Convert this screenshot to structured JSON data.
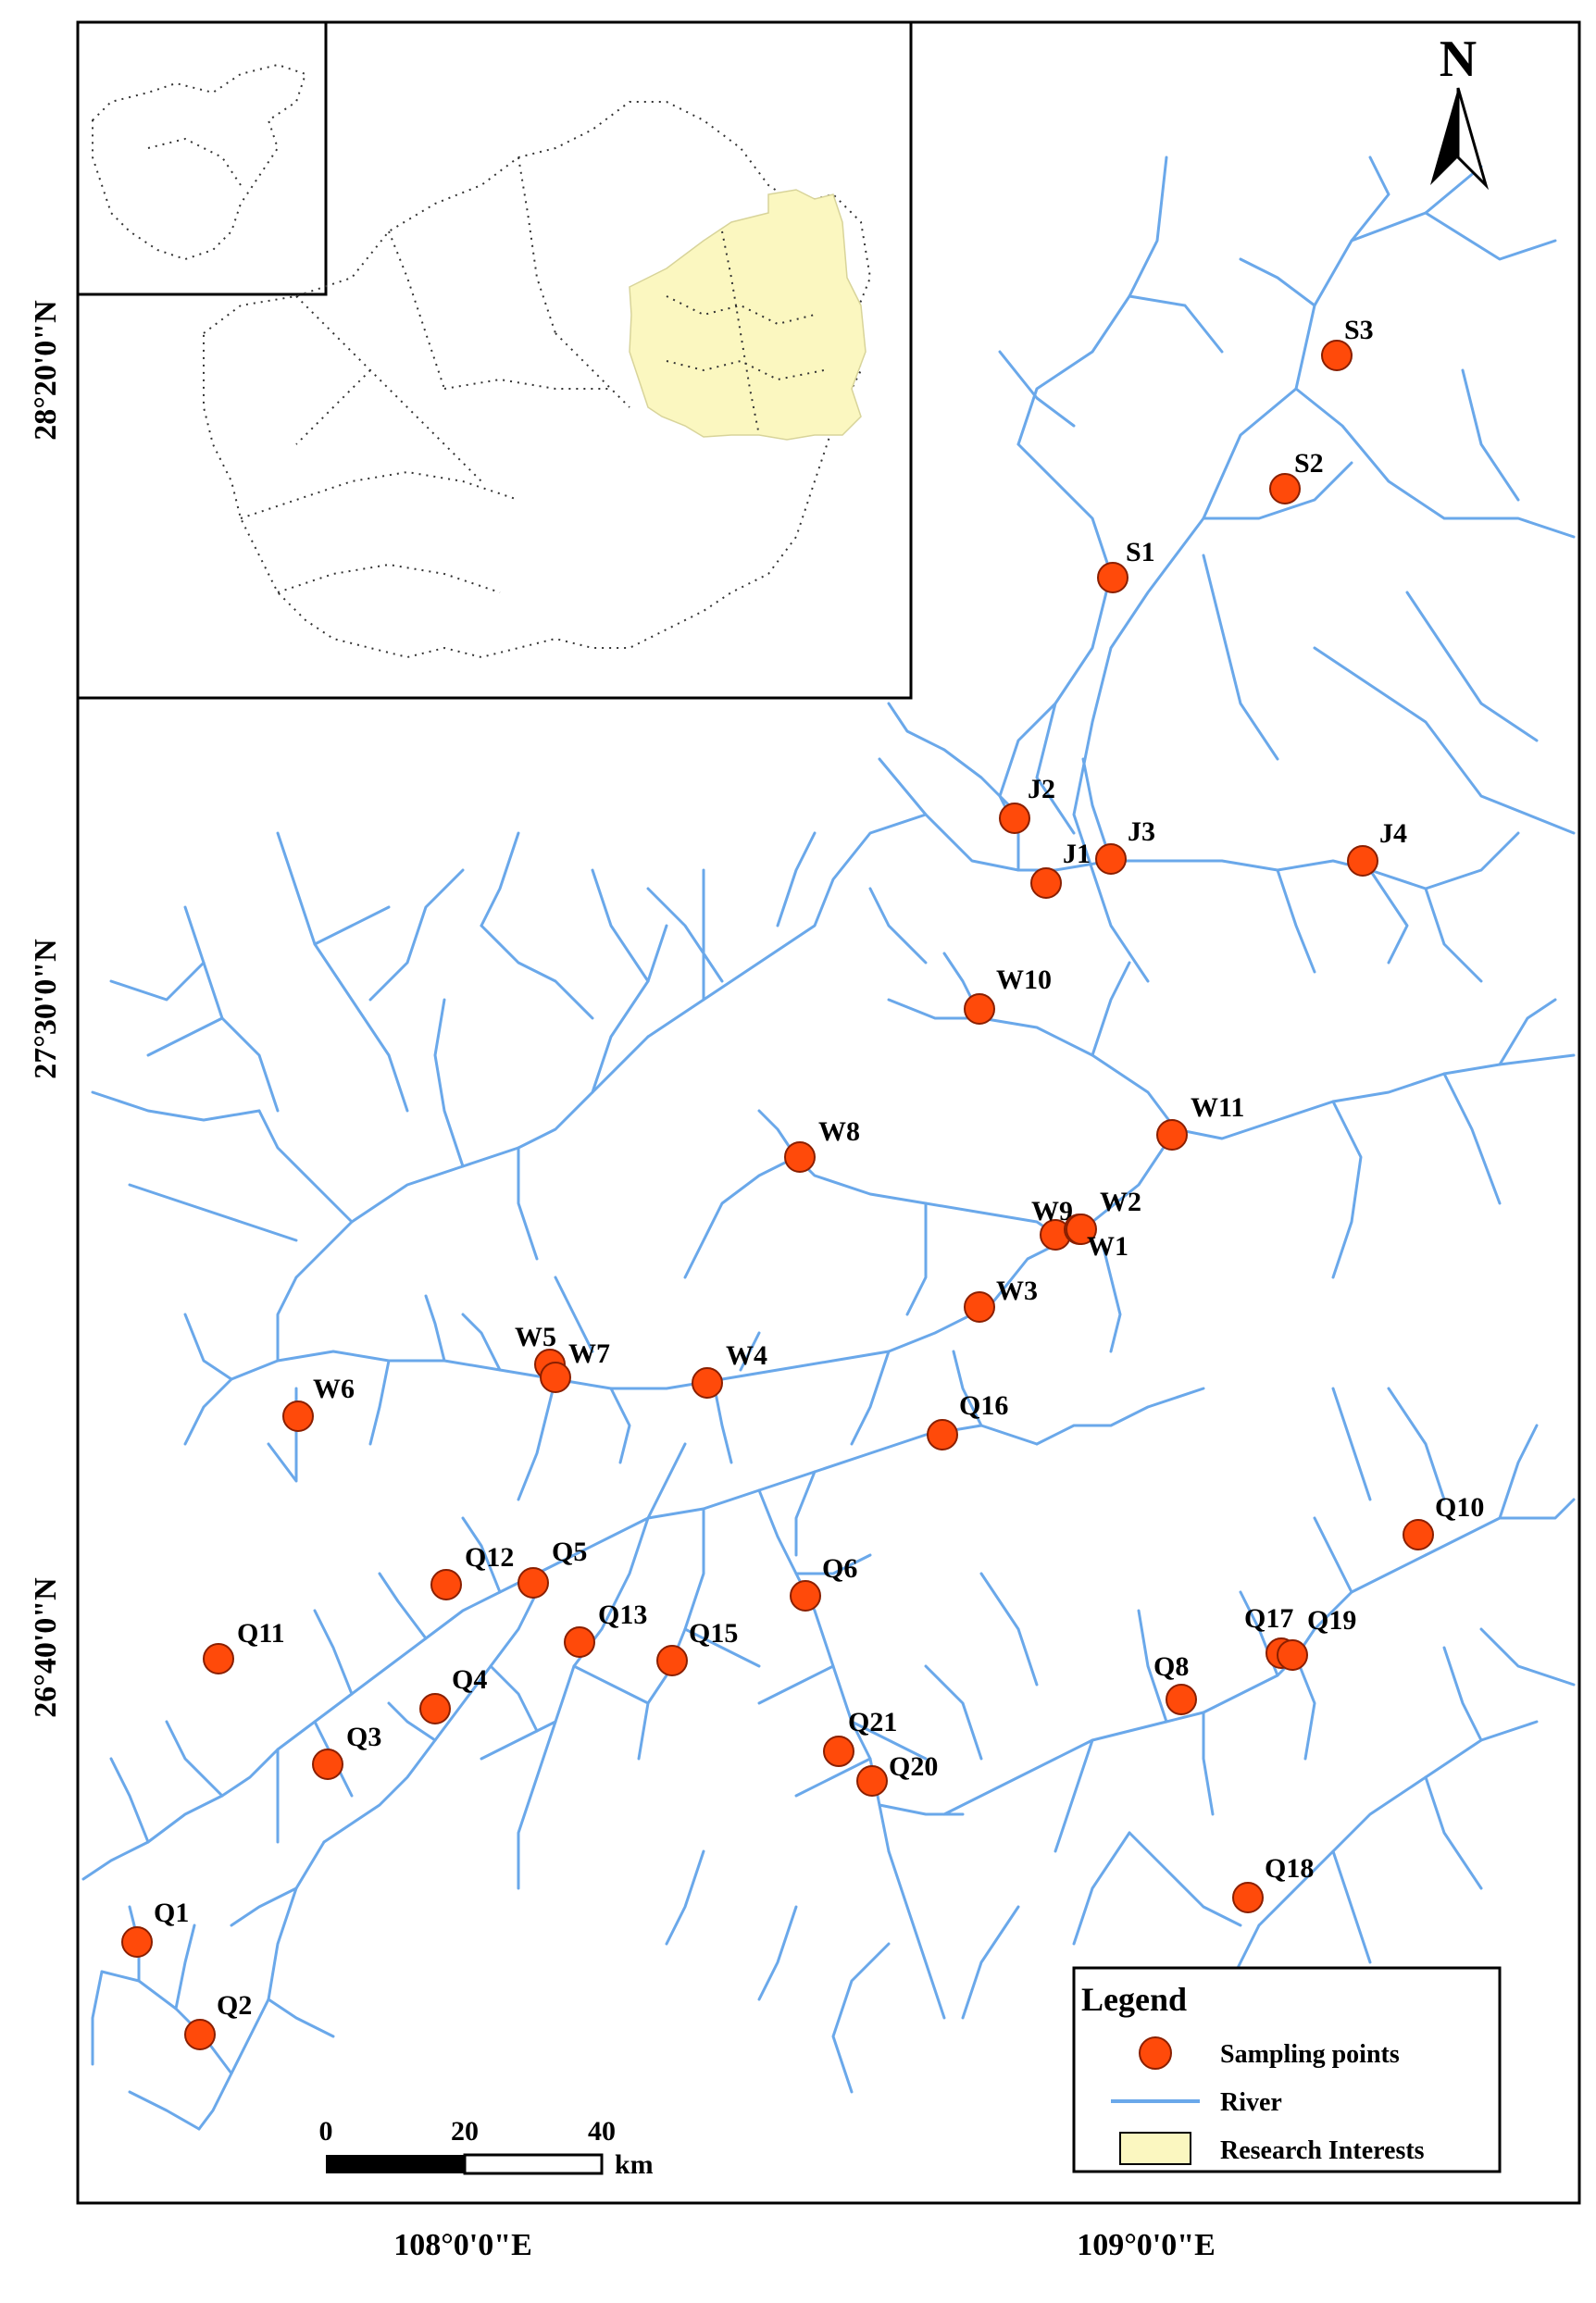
{
  "latitude_labels": [
    "28°20'0\"N",
    "27°30'0\"N",
    "26°40'0\"N"
  ],
  "longitude_labels": [
    "108°0'0\"E",
    "109°0'0\"E"
  ],
  "north_arrow": {
    "label": "N",
    "icon": "north-arrow-icon"
  },
  "scale_bar": {
    "ticks": [
      "0",
      "20",
      "40"
    ],
    "unit": "km"
  },
  "legend": {
    "title": "Legend",
    "items": [
      {
        "label": "Sampling points",
        "symbol": "circle",
        "color": "#ff4a0a"
      },
      {
        "label": "River",
        "symbol": "line",
        "color": "#6aa8ea"
      },
      {
        "label": "Research Interests",
        "symbol": "rect",
        "color": "#fbf7c0"
      }
    ]
  },
  "colors": {
    "river": "#6aa8ea",
    "point_fill": "#ff4a0a",
    "point_stroke": "#8a1f00",
    "research_area": "#fbf7c0"
  },
  "sampling_points": [
    "S3",
    "S2",
    "S1",
    "J2",
    "J1",
    "J3",
    "J4",
    "W10",
    "W11",
    "W8",
    "W9",
    "W2",
    "W1",
    "W3",
    "W5",
    "W7",
    "W4",
    "W6",
    "Q16",
    "Q10",
    "Q12",
    "Q5",
    "Q6",
    "Q11",
    "Q13",
    "Q15",
    "Q4",
    "Q17",
    "Q19",
    "Q8",
    "Q3",
    "Q21",
    "Q20",
    "Q18",
    "Q1",
    "Q2"
  ]
}
